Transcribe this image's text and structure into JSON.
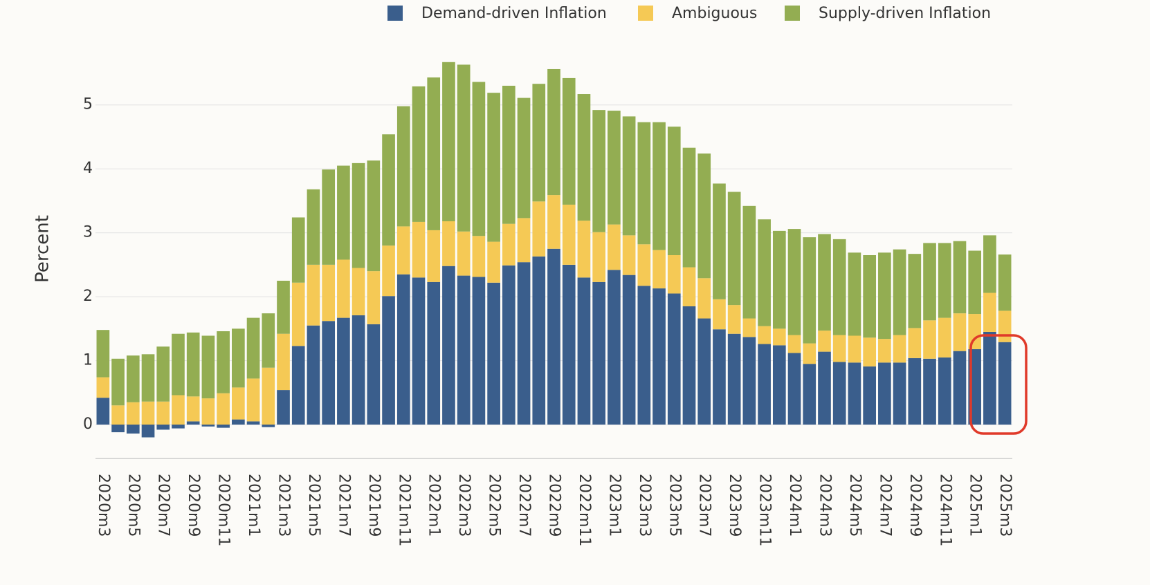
{
  "chart_data": {
    "type": "stacked_bar",
    "y_label": "Percent",
    "legend": "top",
    "grid": true,
    "categories": [
      "2020m3",
      null,
      "2020m5",
      null,
      "2020m7",
      null,
      "2020m9",
      null,
      "2020m11",
      null,
      "2021m1",
      null,
      "2021m3",
      null,
      "2021m5",
      null,
      "2021m7",
      null,
      "2021m9",
      null,
      "2021m11",
      null,
      "2022m1",
      null,
      "2022m3",
      null,
      "2022m5",
      null,
      "2022m7",
      null,
      "2022m9",
      null,
      "2022m11",
      null,
      "2023m1",
      null,
      "2023m3",
      null,
      "2023m5",
      null,
      "2023m7",
      null,
      "2023m9",
      null,
      "2023m11",
      null,
      "2024m1",
      null,
      "2024m3",
      null,
      "2024m5",
      null,
      "2024m7",
      null,
      "2024m9",
      null,
      "2024m11",
      null,
      "2025m1",
      null,
      "2025m3"
    ],
    "series": [
      {
        "name": "Demand-driven Inflation",
        "color": "#3a5e8c",
        "values": [
          0.42,
          -0.12,
          -0.14,
          -0.2,
          -0.08,
          -0.06,
          0.05,
          -0.03,
          -0.05,
          0.08,
          0.05,
          -0.04,
          0.54,
          1.23,
          1.55,
          1.62,
          1.67,
          1.71,
          1.57,
          2.01,
          2.35,
          2.3,
          2.23,
          2.48,
          2.33,
          2.31,
          2.22,
          2.49,
          2.54,
          2.63,
          2.75,
          2.5,
          2.3,
          2.23,
          2.42,
          2.34,
          2.17,
          2.13,
          2.05,
          1.85,
          1.66,
          1.49,
          1.42,
          1.37,
          1.26,
          1.24,
          1.12,
          0.95,
          1.14,
          0.98,
          0.97,
          0.91,
          0.97,
          0.97,
          1.04,
          1.03,
          1.05,
          1.15,
          1.18,
          1.45,
          1.29
        ]
      },
      {
        "name": "Ambiguous",
        "color": "#f5c955",
        "values": [
          0.32,
          0.3,
          0.35,
          0.36,
          0.36,
          0.46,
          0.39,
          0.41,
          0.49,
          0.5,
          0.67,
          0.89,
          0.88,
          0.99,
          0.95,
          0.88,
          0.91,
          0.74,
          0.83,
          0.79,
          0.75,
          0.87,
          0.81,
          0.7,
          0.69,
          0.64,
          0.64,
          0.65,
          0.69,
          0.86,
          0.84,
          0.94,
          0.89,
          0.78,
          0.71,
          0.62,
          0.65,
          0.6,
          0.6,
          0.61,
          0.63,
          0.47,
          0.45,
          0.29,
          0.28,
          0.26,
          0.28,
          0.32,
          0.33,
          0.42,
          0.42,
          0.45,
          0.37,
          0.43,
          0.47,
          0.6,
          0.62,
          0.59,
          0.55,
          0.61,
          0.49
        ]
      },
      {
        "name": "Supply-driven Inflation",
        "color": "#93ad52",
        "values": [
          0.74,
          0.73,
          0.73,
          0.74,
          0.86,
          0.96,
          1.0,
          0.98,
          0.97,
          0.92,
          0.95,
          0.85,
          0.83,
          1.02,
          1.18,
          1.49,
          1.47,
          1.64,
          1.73,
          1.74,
          1.88,
          2.12,
          2.39,
          2.49,
          2.61,
          2.41,
          2.33,
          2.16,
          1.88,
          1.84,
          1.97,
          1.98,
          1.98,
          1.91,
          1.78,
          1.86,
          1.91,
          2.0,
          2.01,
          1.87,
          1.95,
          1.81,
          1.77,
          1.76,
          1.67,
          1.53,
          1.66,
          1.66,
          1.51,
          1.5,
          1.3,
          1.29,
          1.35,
          1.34,
          1.16,
          1.21,
          1.17,
          1.13,
          0.99,
          0.9,
          0.88
        ]
      }
    ],
    "ylim": [
      -0.53,
      5.93
    ],
    "yticks": [
      0,
      1,
      2,
      3,
      4,
      5
    ]
  }
}
